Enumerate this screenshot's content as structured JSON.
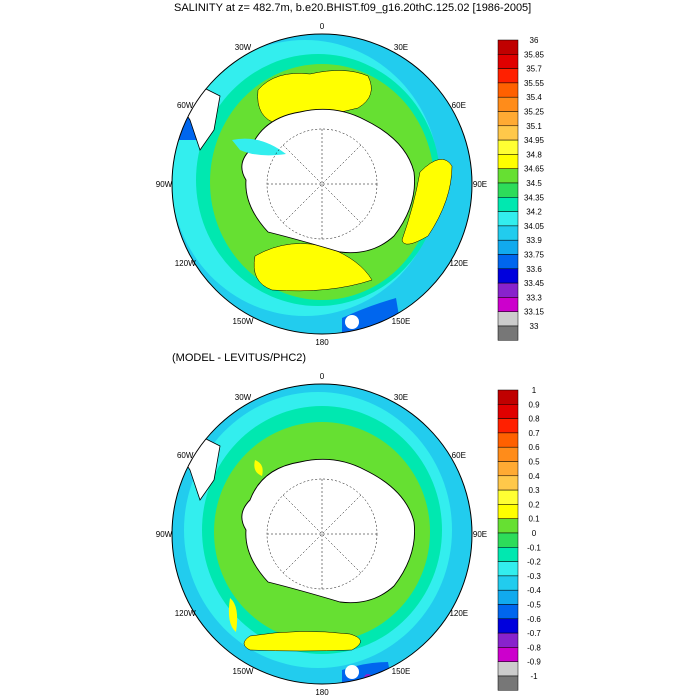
{
  "panels": [
    {
      "title": "SALINITY at z= 482.7m, b.e20.BHIST.f09_g16.20thC.125.02 [1986-2005]",
      "lon_labels": [
        "0",
        "30E",
        "60E",
        "90E",
        "120E",
        "150E",
        "180",
        "150W",
        "120W",
        "90W",
        "60W",
        "30W"
      ],
      "colorbar": {
        "levels": [
          "36",
          "35.85",
          "35.7",
          "35.55",
          "35.4",
          "35.25",
          "35.1",
          "34.95",
          "34.8",
          "34.65",
          "34.5",
          "34.35",
          "34.2",
          "34.05",
          "33.9",
          "33.75",
          "33.6",
          "33.45",
          "33.3",
          "33.15",
          "33"
        ],
        "colors": [
          "#c00000",
          "#e00000",
          "#ff2000",
          "#ff6000",
          "#ff8c1a",
          "#ffaa33",
          "#ffc84a",
          "#ffff33",
          "#ffff00",
          "#66e032",
          "#2ddc5a",
          "#00e8b0",
          "#33eeee",
          "#22ccee",
          "#11aaee",
          "#0066ee",
          "#0000dd",
          "#8822cc",
          "#cc00cc",
          "#cccccc",
          "#777777"
        ]
      }
    },
    {
      "title": "(MODEL - LEVITUS/PHC2)",
      "lon_labels": [
        "0",
        "30E",
        "60E",
        "90E",
        "120E",
        "150E",
        "180",
        "150W",
        "120W",
        "90W",
        "60W",
        "30W"
      ],
      "colorbar": {
        "levels": [
          "1",
          "0.9",
          "0.8",
          "0.7",
          "0.6",
          "0.5",
          "0.4",
          "0.3",
          "0.2",
          "0.1",
          "0",
          "-0.1",
          "-0.2",
          "-0.3",
          "-0.4",
          "-0.5",
          "-0.6",
          "-0.7",
          "-0.8",
          "-0.9",
          "-1"
        ],
        "colors": [
          "#c00000",
          "#e00000",
          "#ff2000",
          "#ff6000",
          "#ff8c1a",
          "#ffaa33",
          "#ffc84a",
          "#ffff33",
          "#ffff00",
          "#66e032",
          "#2ddc5a",
          "#00e8b0",
          "#33eeee",
          "#22ccee",
          "#11aaee",
          "#0066ee",
          "#0000dd",
          "#8822cc",
          "#cc00cc",
          "#cccccc",
          "#777777"
        ]
      }
    }
  ]
}
